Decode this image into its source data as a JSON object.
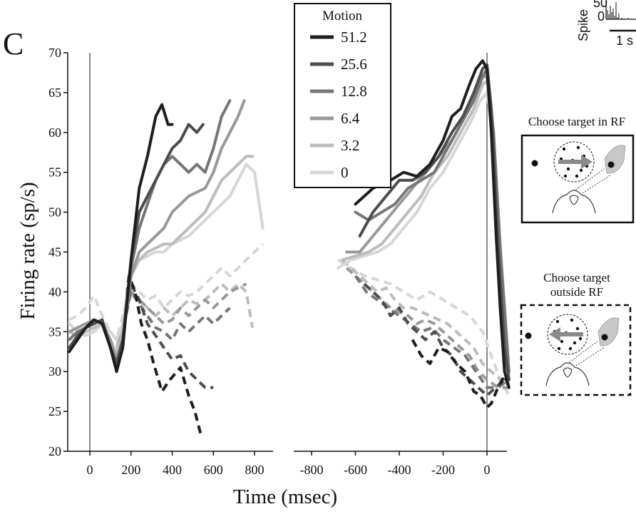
{
  "panel_label": "C",
  "chart_data": {
    "type": "line",
    "ylabel": "Firing rate (sp/s)",
    "xlabel": "Time (msec)",
    "ylim": [
      20,
      70
    ],
    "y_ticks": [
      20,
      25,
      30,
      35,
      40,
      45,
      50,
      55,
      60,
      65,
      70
    ],
    "left_panel": {
      "xlim": [
        -100,
        850
      ],
      "x_ticks": [
        0,
        200,
        400,
        600,
        800
      ]
    },
    "right_panel": {
      "xlim": [
        -900,
        100
      ],
      "x_ticks": [
        -800,
        -600,
        -400,
        -200,
        0
      ]
    },
    "legend": {
      "title": "Motion",
      "placement": "top-center",
      "entries": [
        "51.2",
        "25.6",
        "12.8",
        "6.4",
        "3.2",
        "0"
      ]
    },
    "series": [
      {
        "name": "51.2",
        "color": "#1e1e1e",
        "dashed": false,
        "panel": "left",
        "x": [
          -100,
          -60,
          -20,
          20,
          60,
          100,
          130,
          160,
          200,
          240,
          280,
          320,
          350,
          380,
          400
        ],
        "y": [
          32.5,
          34,
          35.5,
          36.5,
          36,
          33,
          30,
          33,
          44,
          53,
          57,
          62,
          63.5,
          61,
          61
        ]
      },
      {
        "name": "51.2",
        "color": "#1e1e1e",
        "dashed": true,
        "panel": "left",
        "x": [
          130,
          160,
          190,
          220,
          250,
          280,
          310,
          350,
          390,
          440,
          480,
          510,
          540
        ],
        "y": [
          30,
          35,
          42,
          40,
          36,
          34,
          31,
          27.5,
          29,
          30.5,
          27,
          25,
          22
        ]
      },
      {
        "name": "51.2",
        "color": "#1e1e1e",
        "dashed": false,
        "panel": "right",
        "x": [
          -600,
          -520,
          -440,
          -380,
          -320,
          -260,
          -200,
          -160,
          -120,
          -80,
          -50,
          -20,
          0,
          20,
          40,
          60,
          80,
          100
        ],
        "y": [
          51,
          53,
          54,
          55,
          54.5,
          56,
          59,
          62,
          63,
          66,
          68,
          69,
          68,
          60,
          48,
          38,
          30,
          28
        ]
      },
      {
        "name": "51.2",
        "color": "#1e1e1e",
        "dashed": true,
        "panel": "right",
        "x": [
          -340,
          -300,
          -260,
          -220,
          -180,
          -140,
          -100,
          -60,
          -30,
          0,
          20,
          50,
          80,
          100
        ],
        "y": [
          34,
          32,
          31,
          33,
          32.5,
          31,
          30,
          27.5,
          27,
          25.5,
          26,
          28,
          29.5,
          28
        ]
      },
      {
        "name": "25.6",
        "color": "#4d4d4d",
        "dashed": false,
        "panel": "left",
        "x": [
          -100,
          -60,
          -20,
          20,
          60,
          100,
          130,
          160,
          200,
          240,
          280,
          320,
          360,
          400,
          440,
          480,
          520,
          550
        ],
        "y": [
          33,
          34.5,
          35.5,
          36,
          36.5,
          33,
          31,
          34,
          44,
          50,
          52,
          54,
          56,
          58,
          59,
          61,
          60,
          61
        ]
      },
      {
        "name": "25.6",
        "color": "#4d4d4d",
        "dashed": true,
        "panel": "left",
        "x": [
          130,
          160,
          200,
          240,
          280,
          320,
          360,
          400,
          440,
          480,
          520,
          560,
          600
        ],
        "y": [
          30,
          35,
          41,
          39,
          36,
          34.5,
          33,
          31.5,
          32,
          30,
          29,
          28,
          28
        ]
      },
      {
        "name": "25.6",
        "color": "#4d4d4d",
        "dashed": false,
        "panel": "right",
        "x": [
          -580,
          -520,
          -460,
          -400,
          -340,
          -280,
          -220,
          -160,
          -110,
          -60,
          -20,
          0,
          20,
          50,
          80,
          100
        ],
        "y": [
          47,
          50,
          52,
          54,
          54,
          55,
          57,
          60,
          62,
          65,
          68,
          68.5,
          63,
          46,
          33,
          29
        ]
      },
      {
        "name": "25.6",
        "color": "#4d4d4d",
        "dashed": true,
        "panel": "right",
        "x": [
          -560,
          -520,
          -480,
          -440,
          -400,
          -360,
          -320,
          -280,
          -240,
          -200,
          -160,
          -120,
          -80,
          -40,
          0,
          40,
          80,
          100
        ],
        "y": [
          41,
          40,
          39,
          37,
          38,
          36,
          35,
          34,
          35,
          33,
          32,
          30,
          29,
          28,
          27,
          28,
          29,
          29
        ]
      },
      {
        "name": "12.8",
        "color": "#767676",
        "dashed": false,
        "panel": "left",
        "x": [
          -100,
          -60,
          -20,
          20,
          60,
          100,
          130,
          160,
          200,
          240,
          280,
          320,
          360,
          400,
          440,
          480,
          520,
          560,
          600,
          640,
          680
        ],
        "y": [
          34,
          35,
          35.5,
          36,
          36.5,
          33,
          31,
          34,
          43,
          48,
          51,
          54,
          56,
          57,
          56,
          55,
          56,
          55,
          58,
          62,
          64
        ]
      },
      {
        "name": "12.8",
        "color": "#767676",
        "dashed": true,
        "panel": "left",
        "x": [
          130,
          160,
          200,
          240,
          280,
          320,
          360,
          400,
          440,
          480,
          520,
          560,
          600,
          640,
          680
        ],
        "y": [
          31,
          35,
          40,
          38.5,
          37,
          35.5,
          35,
          34,
          36,
          35,
          36,
          37,
          36,
          37,
          38
        ]
      },
      {
        "name": "12.8",
        "color": "#767676",
        "dashed": false,
        "panel": "right",
        "x": [
          -600,
          -540,
          -480,
          -420,
          -360,
          -300,
          -240,
          -180,
          -120,
          -60,
          -20,
          0,
          30,
          60,
          90,
          100
        ],
        "y": [
          50,
          49,
          50,
          51,
          53,
          54,
          55,
          58,
          61,
          64,
          67,
          68,
          60,
          45,
          34,
          30
        ]
      },
      {
        "name": "12.8",
        "color": "#767676",
        "dashed": true,
        "panel": "right",
        "x": [
          -600,
          -550,
          -500,
          -450,
          -400,
          -350,
          -300,
          -250,
          -200,
          -150,
          -100,
          -50,
          0,
          50,
          100
        ],
        "y": [
          42,
          40,
          39,
          38,
          37,
          36,
          35,
          35.5,
          34,
          33,
          32,
          30,
          28,
          28,
          29
        ]
      },
      {
        "name": "6.4",
        "color": "#999999",
        "dashed": false,
        "panel": "left",
        "x": [
          -100,
          -60,
          -20,
          20,
          60,
          100,
          130,
          160,
          200,
          240,
          280,
          320,
          360,
          400,
          440,
          480,
          520,
          560,
          600,
          640,
          680,
          720,
          750
        ],
        "y": [
          35,
          35.5,
          36,
          36.5,
          36,
          34,
          31.5,
          34,
          42,
          45,
          46,
          47,
          48,
          50,
          51,
          52,
          52.5,
          53,
          55,
          58,
          60,
          62,
          64
        ]
      },
      {
        "name": "6.4",
        "color": "#999999",
        "dashed": true,
        "panel": "left",
        "x": [
          130,
          160,
          200,
          240,
          280,
          320,
          360,
          400,
          440,
          480,
          520,
          560,
          600,
          640,
          680,
          720,
          760
        ],
        "y": [
          32,
          36,
          40,
          39,
          38,
          37,
          36,
          36.5,
          38,
          37,
          38,
          39,
          38,
          39,
          40,
          40.5,
          41
        ]
      },
      {
        "name": "6.4",
        "color": "#999999",
        "dashed": false,
        "panel": "right",
        "x": [
          -640,
          -580,
          -520,
          -460,
          -400,
          -340,
          -280,
          -220,
          -160,
          -100,
          -50,
          -20,
          0,
          30,
          60,
          90,
          100
        ],
        "y": [
          45,
          45,
          47,
          49,
          51,
          53,
          55,
          57,
          59,
          62,
          65,
          67,
          67,
          60,
          46,
          34,
          30
        ]
      },
      {
        "name": "6.4",
        "color": "#999999",
        "dashed": true,
        "panel": "right",
        "x": [
          -640,
          -600,
          -560,
          -520,
          -480,
          -440,
          -400,
          -360,
          -320,
          -280,
          -240,
          -200,
          -160,
          -120,
          -80,
          -40,
          0,
          50,
          100
        ],
        "y": [
          43,
          42,
          41,
          40,
          39,
          38,
          37.5,
          37,
          36,
          36.5,
          36,
          35,
          34,
          33,
          32,
          30,
          29,
          28,
          28
        ]
      },
      {
        "name": "3.2",
        "color": "#bcbcbc",
        "dashed": false,
        "panel": "left",
        "x": [
          -100,
          -60,
          -20,
          20,
          60,
          100,
          130,
          160,
          200,
          240,
          280,
          320,
          360,
          400,
          440,
          480,
          520,
          560,
          600,
          640,
          680,
          720,
          760,
          790
        ],
        "y": [
          35,
          34.5,
          35,
          35.5,
          36,
          34,
          32,
          35,
          42,
          44,
          45,
          45.5,
          46,
          46,
          47,
          48,
          49,
          50,
          52,
          54,
          55,
          56,
          57,
          57
        ]
      },
      {
        "name": "3.2",
        "color": "#bcbcbc",
        "dashed": true,
        "panel": "left",
        "x": [
          130,
          160,
          200,
          240,
          280,
          320,
          360,
          400,
          440,
          480,
          520,
          560,
          600,
          640,
          680,
          720,
          760,
          790
        ],
        "y": [
          33,
          36,
          40,
          39,
          38,
          37,
          38,
          37,
          38,
          39,
          38.5,
          39,
          40,
          41,
          40,
          41,
          40,
          35.5
        ]
      },
      {
        "name": "3.2",
        "color": "#bcbcbc",
        "dashed": false,
        "panel": "right",
        "x": [
          -660,
          -600,
          -540,
          -480,
          -420,
          -360,
          -300,
          -240,
          -180,
          -120,
          -60,
          -20,
          0,
          30,
          60,
          90,
          100
        ],
        "y": [
          44,
          44.5,
          45,
          46,
          48,
          50,
          52,
          55,
          57,
          60,
          63,
          66,
          66.5,
          60,
          46,
          33,
          29
        ]
      },
      {
        "name": "3.2",
        "color": "#bcbcbc",
        "dashed": true,
        "panel": "right",
        "x": [
          -660,
          -620,
          -580,
          -540,
          -500,
          -460,
          -420,
          -380,
          -340,
          -300,
          -260,
          -220,
          -180,
          -140,
          -100,
          -60,
          -20,
          20,
          60,
          100
        ],
        "y": [
          44,
          43,
          42,
          41,
          40,
          40.5,
          39,
          38,
          38,
          37.5,
          37,
          36.5,
          36,
          35,
          34,
          33,
          31,
          30,
          29,
          28
        ]
      },
      {
        "name": "0",
        "color": "#d6d6d6",
        "dashed": false,
        "panel": "left",
        "x": [
          -100,
          -60,
          -20,
          20,
          60,
          100,
          130,
          160,
          200,
          240,
          280,
          320,
          360,
          400,
          440,
          480,
          520,
          560,
          600,
          640,
          680,
          720,
          760,
          800,
          840
        ],
        "y": [
          36,
          35,
          34.5,
          35,
          36,
          35,
          34,
          36,
          43,
          44,
          44.5,
          45,
          45,
          46,
          46.5,
          47,
          48,
          49,
          50,
          51,
          52,
          54,
          56,
          55,
          48
        ]
      },
      {
        "name": "0",
        "color": "#d6d6d6",
        "dashed": true,
        "panel": "left",
        "x": [
          -100,
          -60,
          -20,
          20,
          60,
          100,
          130,
          160,
          200,
          240,
          280,
          320,
          360,
          400,
          440,
          480,
          520,
          560,
          600,
          640,
          680,
          720,
          760,
          800,
          840
        ],
        "y": [
          36.5,
          37,
          38,
          39.5,
          37,
          35,
          34,
          37,
          41,
          40,
          39,
          39.5,
          38,
          39,
          40,
          39.5,
          40,
          41,
          42,
          43,
          42,
          43,
          44,
          45,
          46
        ]
      },
      {
        "name": "0",
        "color": "#d6d6d6",
        "dashed": false,
        "panel": "right",
        "x": [
          -680,
          -620,
          -560,
          -500,
          -440,
          -380,
          -320,
          -260,
          -200,
          -140,
          -80,
          -30,
          0,
          30,
          60,
          90,
          100
        ],
        "y": [
          43,
          44,
          44.5,
          45,
          46,
          48,
          50,
          53,
          55,
          58,
          61,
          64,
          65,
          59,
          45,
          32,
          28
        ]
      },
      {
        "name": "0",
        "color": "#d6d6d6",
        "dashed": true,
        "panel": "right",
        "x": [
          -680,
          -620,
          -560,
          -500,
          -440,
          -380,
          -320,
          -260,
          -200,
          -140,
          -80,
          -20,
          20,
          60,
          100
        ],
        "y": [
          44,
          43,
          42,
          41.5,
          41,
          40,
          39,
          40,
          39,
          38,
          37,
          35,
          32,
          29,
          27
        ]
      }
    ]
  },
  "inset_spikes": {
    "ylabel": "Spike",
    "ytick_50": "50",
    "ytick_0": "0",
    "scalebar": "1 s"
  },
  "schematics": [
    {
      "caption_lines": [
        "Choose target in RF"
      ],
      "arrow_direction": "right",
      "border": "solid"
    },
    {
      "caption_lines": [
        "Choose target",
        "outside RF"
      ],
      "arrow_direction": "left",
      "border": "dashed"
    }
  ]
}
